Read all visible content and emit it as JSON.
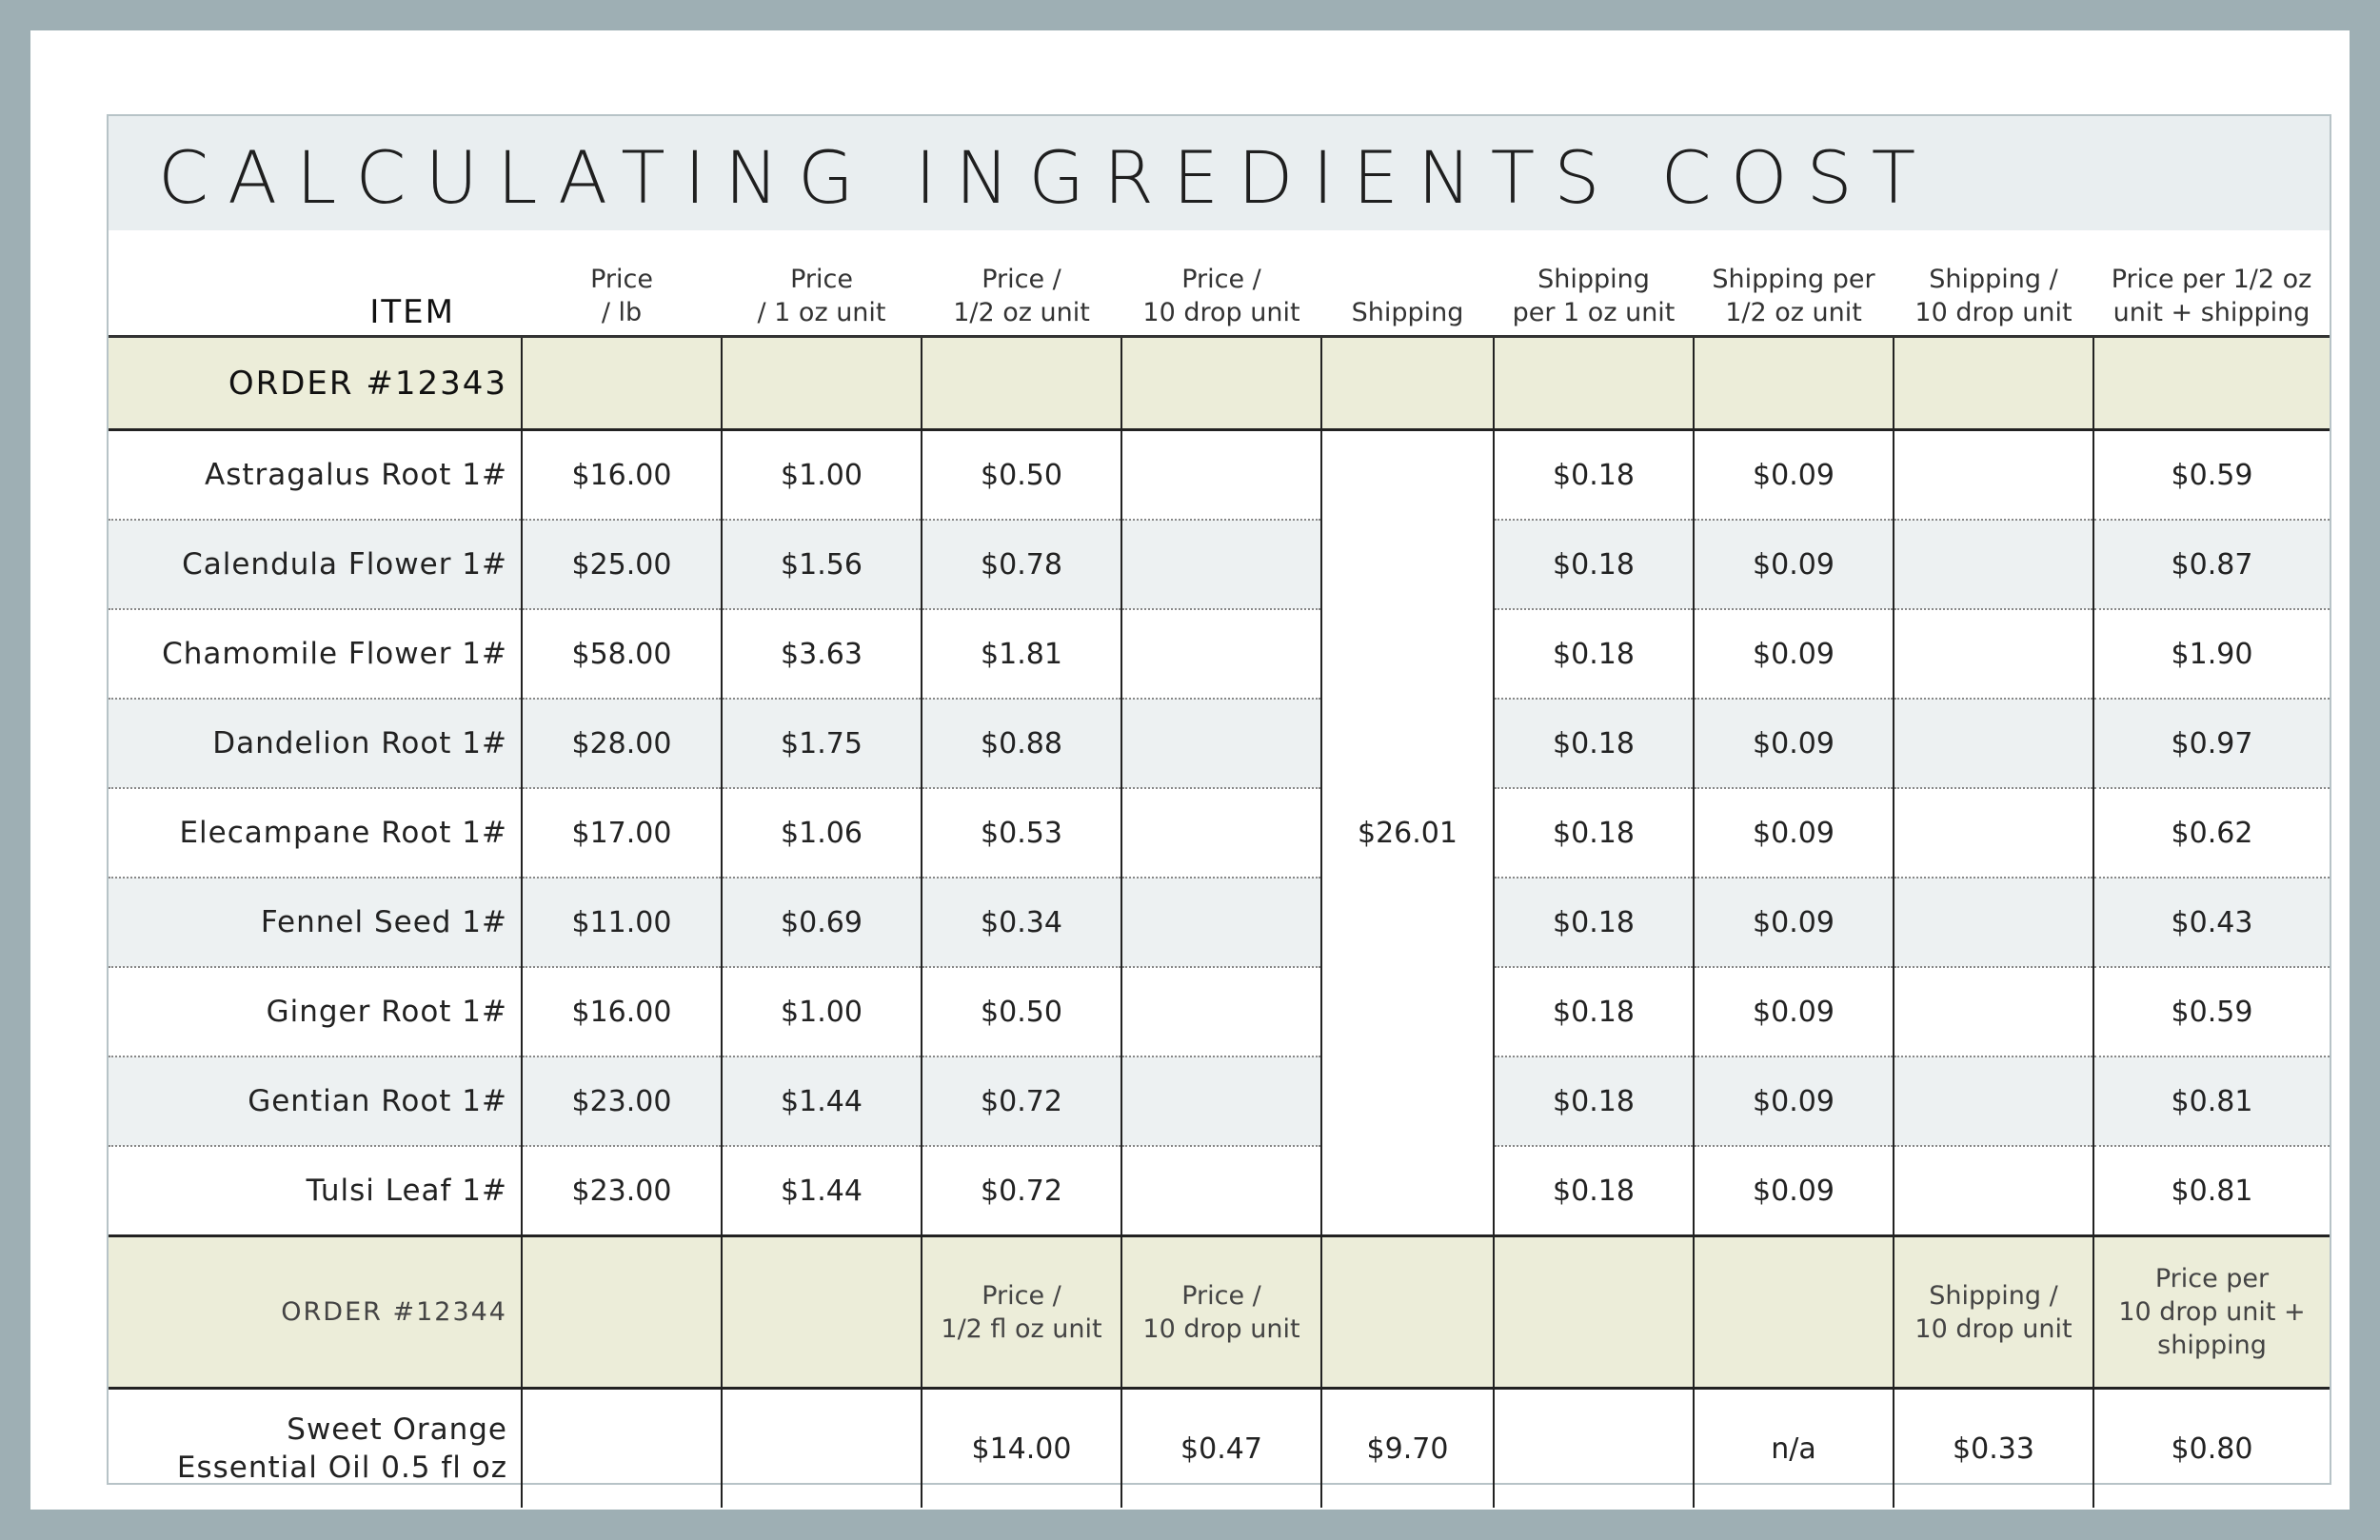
{
  "title": "CALCULATING INGREDIENTS COST",
  "headers": {
    "item": "ITEM",
    "cols": [
      [
        "Price",
        "/ lb"
      ],
      [
        "Price",
        "/ 1 oz unit"
      ],
      [
        "Price /",
        "1/2 oz unit"
      ],
      [
        "Price /",
        "10 drop unit"
      ],
      [
        "",
        "Shipping"
      ],
      [
        "Shipping",
        "per 1 oz unit"
      ],
      [
        "Shipping per",
        "1/2 oz unit"
      ],
      [
        "Shipping /",
        "10 drop unit"
      ],
      [
        "Price per 1/2 oz",
        "unit + shipping"
      ]
    ]
  },
  "order1": {
    "label": "ORDER #12343",
    "shipping_total": "$26.01",
    "rows": [
      {
        "item": "Astragalus Root 1#",
        "per_lb": "$16.00",
        "per_oz": "$1.00",
        "per_half_oz": "$0.50",
        "per_10_drop": "",
        "ship_oz": "$0.18",
        "ship_half_oz": "$0.09",
        "ship_10_drop": "",
        "total": "$0.59"
      },
      {
        "item": "Calendula Flower 1#",
        "per_lb": "$25.00",
        "per_oz": "$1.56",
        "per_half_oz": "$0.78",
        "per_10_drop": "",
        "ship_oz": "$0.18",
        "ship_half_oz": "$0.09",
        "ship_10_drop": "",
        "total": "$0.87"
      },
      {
        "item": "Chamomile Flower 1#",
        "per_lb": "$58.00",
        "per_oz": "$3.63",
        "per_half_oz": "$1.81",
        "per_10_drop": "",
        "ship_oz": "$0.18",
        "ship_half_oz": "$0.09",
        "ship_10_drop": "",
        "total": "$1.90"
      },
      {
        "item": "Dandelion Root 1#",
        "per_lb": "$28.00",
        "per_oz": "$1.75",
        "per_half_oz": "$0.88",
        "per_10_drop": "",
        "ship_oz": "$0.18",
        "ship_half_oz": "$0.09",
        "ship_10_drop": "",
        "total": "$0.97"
      },
      {
        "item": "Elecampane Root 1#",
        "per_lb": "$17.00",
        "per_oz": "$1.06",
        "per_half_oz": "$0.53",
        "per_10_drop": "",
        "ship_oz": "$0.18",
        "ship_half_oz": "$0.09",
        "ship_10_drop": "",
        "total": "$0.62"
      },
      {
        "item": "Fennel Seed 1#",
        "per_lb": "$11.00",
        "per_oz": "$0.69",
        "per_half_oz": "$0.34",
        "per_10_drop": "",
        "ship_oz": "$0.18",
        "ship_half_oz": "$0.09",
        "ship_10_drop": "",
        "total": "$0.43"
      },
      {
        "item": "Ginger Root 1#",
        "per_lb": "$16.00",
        "per_oz": "$1.00",
        "per_half_oz": "$0.50",
        "per_10_drop": "",
        "ship_oz": "$0.18",
        "ship_half_oz": "$0.09",
        "ship_10_drop": "",
        "total": "$0.59"
      },
      {
        "item": "Gentian Root 1#",
        "per_lb": "$23.00",
        "per_oz": "$1.44",
        "per_half_oz": "$0.72",
        "per_10_drop": "",
        "ship_oz": "$0.18",
        "ship_half_oz": "$0.09",
        "ship_10_drop": "",
        "total": "$0.81"
      },
      {
        "item": "Tulsi Leaf 1#",
        "per_lb": "$23.00",
        "per_oz": "$1.44",
        "per_half_oz": "$0.72",
        "per_10_drop": "",
        "ship_oz": "$0.18",
        "ship_half_oz": "$0.09",
        "ship_10_drop": "",
        "total": "$0.81"
      }
    ]
  },
  "order2": {
    "label": "ORDER #12344",
    "subheaders": {
      "c3": [
        "Price /",
        "1/2 fl oz unit"
      ],
      "c4": [
        "Price /",
        "10 drop unit"
      ],
      "c8": [
        "Shipping /",
        "10 drop unit"
      ],
      "c9": [
        "Price per",
        "10 drop unit +",
        "shipping"
      ]
    },
    "row": {
      "item_line1": "Sweet Orange",
      "item_line2": "Essential Oil 0.5 fl oz",
      "per_lb": "",
      "per_oz": "",
      "per_half_oz": "$14.00",
      "per_10_drop": "$0.47",
      "shipping": "$9.70",
      "ship_oz": "",
      "ship_half_oz": "n/a",
      "ship_10_drop": "$0.33",
      "total": "$0.80"
    }
  }
}
